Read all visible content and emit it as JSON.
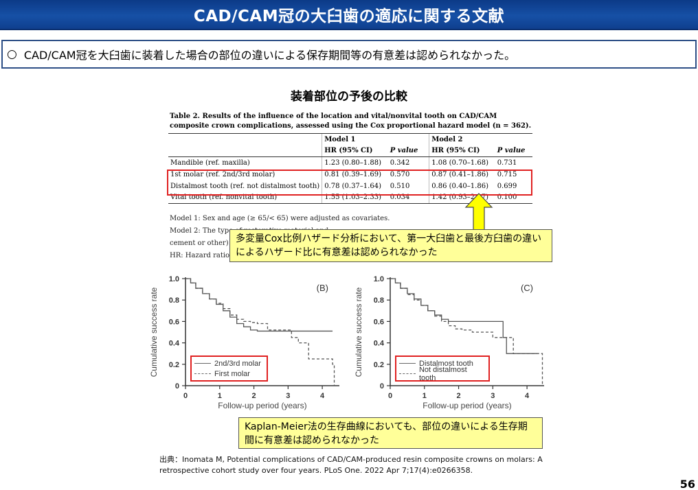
{
  "slide": {
    "title": "CAD/CAM冠の大臼歯の適応に関する文献",
    "summary_bullet": "○",
    "summary_text": "CAD/CAM冠を大臼歯に装着した場合の部位の違いによる保存期間等の有意差は認められなかった。",
    "figure_title": "装着部位の予後の比較",
    "page_number": "56"
  },
  "table": {
    "caption": "Table 2.  Results of the influence of the location and vital/nonvital tooth on CAD/CAM composite crown complications, assessed using the Cox proportional hazard model (n = 362).",
    "group_headers": [
      "",
      "Model 1",
      "",
      "Model 2",
      ""
    ],
    "column_headers": [
      "",
      "HR (95% CI)",
      "P value",
      "HR (95% CI)",
      "P value"
    ],
    "rows": [
      [
        "Mandible (ref. maxilla)",
        "1.23 (0.80–1.88)",
        "0.342",
        "1.08 (0.70–1.68)",
        "0.731"
      ],
      [
        "1st molar (ref. 2nd/3rd molar)",
        "0.81 (0.39–1.69)",
        "0.570",
        "0.87 (0.41–1.86)",
        "0.715"
      ],
      [
        "Distalmost tooth (ref. not distalmost tooth)",
        "0.78 (0.37–1.64)",
        "0.510",
        "0.86 (0.40–1.86)",
        "0.699"
      ],
      [
        "Vital tooth (ref. nonvital tooth)",
        "1.55 (1.03–2.33)",
        "0.034",
        "1.42 (0.93–2.17)",
        "0.100"
      ]
    ],
    "notes": [
      "Model 1: Sex and age (≥ 65/< 65) were adjusted as covariates.",
      "Model 2: The type of restorative material and …",
      "cement or other) w…",
      "HR: Hazard ratio; …"
    ]
  },
  "callouts": {
    "cox": "多変量Cox比例ハザード分析において、第一大臼歯と最後方臼歯の違いによるハザード比に有意差は認められなかった",
    "km": "Kaplan-Meier法の生存曲線においても、部位の違いによる生存期間に有意差は認められなかった"
  },
  "citation": "出典：Inomata M,  Potential complications of CAD/CAM-produced resin composite crowns on molars: A retrospective cohort study over four years. PLoS One. 2022 Apr 7;17(4):e0266358.",
  "chart_data": [
    {
      "type": "line",
      "panel_label": "(B)",
      "xlabel": "Follow-up period (years)",
      "ylabel": "Cumulative success rate",
      "xlim": [
        0,
        4.5
      ],
      "ylim": [
        0,
        1.0
      ],
      "xticks": [
        0,
        1,
        2,
        3,
        4
      ],
      "yticks": [
        "0",
        "0.2",
        "0.4",
        "0.6",
        "0.8",
        "1.0"
      ],
      "series": [
        {
          "name": "2nd/3rd molar",
          "style": "solid",
          "x": [
            0,
            0.15,
            0.3,
            0.5,
            0.7,
            0.9,
            1.1,
            1.3,
            1.5,
            1.7,
            1.9,
            2.1,
            2.3,
            4.3
          ],
          "y": [
            1.0,
            0.96,
            0.91,
            0.86,
            0.81,
            0.76,
            0.7,
            0.64,
            0.58,
            0.55,
            0.52,
            0.51,
            0.51,
            0.51
          ]
        },
        {
          "name": "First molar",
          "style": "dashed",
          "x": [
            0,
            0.15,
            0.3,
            0.5,
            0.7,
            0.9,
            1.1,
            1.3,
            1.5,
            1.7,
            1.9,
            2.1,
            2.4,
            3.1,
            3.3,
            3.6,
            4.1,
            4.3,
            4.35
          ],
          "y": [
            1.0,
            0.96,
            0.91,
            0.86,
            0.81,
            0.77,
            0.72,
            0.66,
            0.62,
            0.6,
            0.59,
            0.58,
            0.52,
            0.45,
            0.4,
            0.25,
            0.25,
            0.2,
            0
          ]
        }
      ],
      "legend": "bottom-left"
    },
    {
      "type": "line",
      "panel_label": "(C)",
      "xlabel": "Follow-up period (years)",
      "ylabel": "Cumulative success rate",
      "xlim": [
        0,
        4.5
      ],
      "ylim": [
        0,
        1.0
      ],
      "xticks": [
        0,
        1,
        2,
        3,
        4
      ],
      "yticks": [
        "0",
        "0.2",
        "0.4",
        "0.6",
        "0.8",
        "1.0"
      ],
      "series": [
        {
          "name": "Distalmost tooth",
          "style": "solid",
          "x": [
            0,
            0.15,
            0.3,
            0.5,
            0.7,
            0.9,
            1.1,
            1.3,
            1.5,
            1.7,
            1.9,
            2.1,
            2.4,
            3.3,
            3.4,
            3.6,
            4.3
          ],
          "y": [
            1.0,
            0.96,
            0.91,
            0.86,
            0.81,
            0.75,
            0.7,
            0.66,
            0.62,
            0.6,
            0.6,
            0.6,
            0.6,
            0.45,
            0.3,
            0.3,
            0.3
          ]
        },
        {
          "name": "Not distalmost tooth",
          "style": "dashed",
          "x": [
            0,
            0.15,
            0.3,
            0.5,
            0.7,
            0.9,
            1.1,
            1.3,
            1.5,
            1.7,
            1.9,
            2.1,
            2.4,
            3.0,
            3.3,
            3.6,
            4.4,
            4.45
          ],
          "y": [
            1.0,
            0.96,
            0.91,
            0.85,
            0.8,
            0.75,
            0.7,
            0.65,
            0.6,
            0.56,
            0.53,
            0.52,
            0.5,
            0.45,
            0.45,
            0.3,
            0.3,
            0
          ]
        }
      ],
      "legend": "bottom-left"
    }
  ],
  "colors": {
    "title_bar": "#1650a6",
    "highlight_red": "#e02020",
    "callout_fill": "#ffff99",
    "arrow_fill": "#ffff00"
  }
}
